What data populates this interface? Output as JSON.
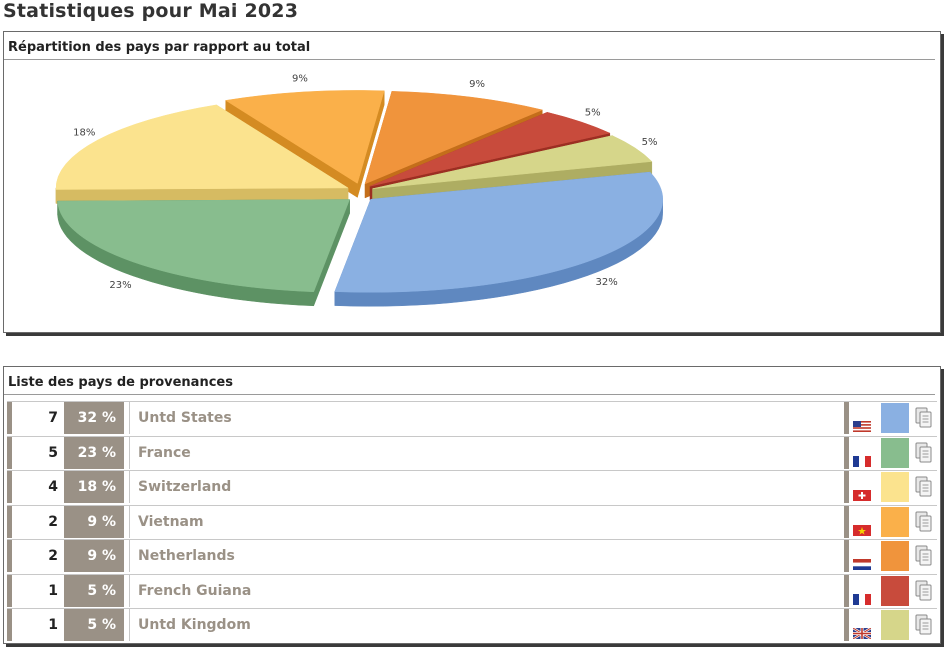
{
  "page": {
    "title": "Statistiques pour Mai 2023"
  },
  "chart_panel": {
    "title": "Répartition des pays par rapport au total"
  },
  "list_panel": {
    "title": "Liste des pays de provenances"
  },
  "chart_data": {
    "type": "pie",
    "style": "3d-exploded",
    "title": "",
    "slices": [
      {
        "label": "32%",
        "value": 32,
        "color": "#8ab0e2",
        "side": "#5f88c0"
      },
      {
        "label": "23%",
        "value": 23,
        "color": "#88bd8e",
        "side": "#5d9264"
      },
      {
        "label": "18%",
        "value": 18,
        "color": "#fbe38e",
        "side": "#d6bb62"
      },
      {
        "label": "9%",
        "value": 9,
        "color": "#fab04a",
        "side": "#d48b22"
      },
      {
        "label": "9%",
        "value": 9,
        "color": "#f0943c",
        "side": "#c46e1a"
      },
      {
        "label": "5%",
        "value": 5,
        "color": "#c84b3c",
        "side": "#9c2e22"
      },
      {
        "label": "5%",
        "value": 5,
        "color": "#d6d68a",
        "side": "#aead62"
      }
    ]
  },
  "countries": [
    {
      "count": "7",
      "percent": "32 %",
      "name": "Untd States",
      "flag": "us-flag-icon",
      "color": "#8ab0e2"
    },
    {
      "count": "5",
      "percent": "23 %",
      "name": "France",
      "flag": "fr-flag-icon",
      "color": "#88bd8e"
    },
    {
      "count": "4",
      "percent": "18 %",
      "name": "Switzerland",
      "flag": "ch-flag-icon",
      "color": "#fbe38e"
    },
    {
      "count": "2",
      "percent": "9 %",
      "name": "Vietnam",
      "flag": "vn-flag-icon",
      "color": "#fab04a"
    },
    {
      "count": "2",
      "percent": "9 %",
      "name": "Netherlands",
      "flag": "nl-flag-icon",
      "color": "#f0943c"
    },
    {
      "count": "1",
      "percent": "5 %",
      "name": "French Guiana",
      "flag": "fr-flag-icon",
      "color": "#c84b3c"
    },
    {
      "count": "1",
      "percent": "5 %",
      "name": "Untd Kingdom",
      "flag": "gb-flag-icon",
      "color": "#d6d68a"
    }
  ]
}
